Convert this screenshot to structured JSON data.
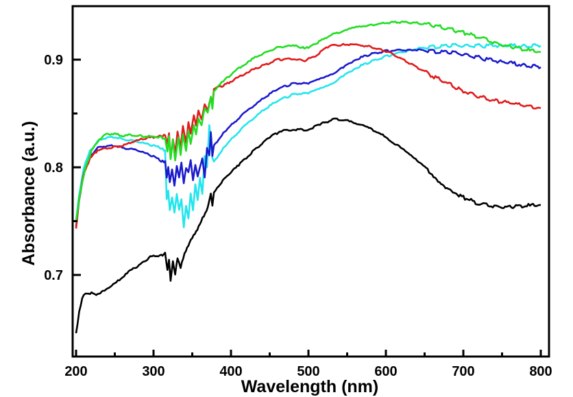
{
  "chart_data": {
    "type": "line",
    "title": "",
    "xlabel": "Wavelength (nm)",
    "ylabel": "Absorbance (a.u.)",
    "xlim": [
      198,
      810
    ],
    "ylim": [
      0.625,
      0.949
    ],
    "x_ticks": [
      200,
      300,
      400,
      500,
      600,
      700,
      800
    ],
    "x_tick_labels": [
      "200",
      "300",
      "400",
      "500",
      "600",
      "700",
      "800"
    ],
    "x_minor_ticks": [
      250,
      350,
      450,
      550,
      650,
      750
    ],
    "y_ticks": [
      0.7,
      0.8,
      0.9
    ],
    "y_tick_labels": [
      "0.7",
      "0.8",
      "0.9"
    ],
    "y_minor_ticks": [
      0.75,
      0.85
    ],
    "grid": false,
    "legend": "none",
    "series": [
      {
        "name": "black",
        "color": "#000000",
        "x": [
          200,
          204,
          208,
          212,
          220,
          226,
          235,
          252,
          270,
          283,
          296,
          310,
          315,
          318,
          320,
          322,
          325,
          328,
          331,
          335,
          340,
          345,
          350,
          355,
          360,
          365,
          370,
          374,
          376,
          378,
          382,
          395,
          410,
          430,
          450,
          465,
          480,
          500,
          515,
          535,
          555,
          580,
          600,
          625,
          650,
          675,
          700,
          720,
          740,
          760,
          780,
          800
        ],
        "y": [
          0.646,
          0.665,
          0.678,
          0.683,
          0.683,
          0.681,
          0.685,
          0.693,
          0.704,
          0.71,
          0.717,
          0.718,
          0.72,
          0.705,
          0.715,
          0.695,
          0.712,
          0.7,
          0.716,
          0.707,
          0.72,
          0.728,
          0.735,
          0.74,
          0.748,
          0.755,
          0.762,
          0.775,
          0.765,
          0.777,
          0.781,
          0.792,
          0.802,
          0.816,
          0.828,
          0.834,
          0.835,
          0.835,
          0.84,
          0.845,
          0.843,
          0.836,
          0.828,
          0.815,
          0.8,
          0.783,
          0.772,
          0.766,
          0.764,
          0.763,
          0.764,
          0.765
        ]
      },
      {
        "name": "red",
        "color": "#e01b1b",
        "x": [
          200,
          204,
          210,
          218,
          228,
          240,
          250,
          260,
          270,
          280,
          290,
          300,
          310,
          315,
          318,
          320,
          322,
          325,
          328,
          331,
          335,
          338,
          342,
          345,
          348,
          352,
          355,
          358,
          362,
          366,
          370,
          374,
          376,
          378,
          390,
          403,
          420,
          440,
          460,
          482,
          495,
          510,
          527,
          545,
          560,
          580,
          600,
          620,
          640,
          660,
          680,
          700,
          720,
          740,
          760,
          780,
          800
        ],
        "y": [
          0.744,
          0.77,
          0.795,
          0.808,
          0.816,
          0.818,
          0.819,
          0.82,
          0.823,
          0.825,
          0.827,
          0.828,
          0.829,
          0.83,
          0.822,
          0.832,
          0.808,
          0.826,
          0.812,
          0.834,
          0.818,
          0.838,
          0.822,
          0.842,
          0.832,
          0.848,
          0.838,
          0.852,
          0.845,
          0.858,
          0.852,
          0.866,
          0.858,
          0.873,
          0.876,
          0.881,
          0.888,
          0.894,
          0.9,
          0.901,
          0.899,
          0.904,
          0.913,
          0.914,
          0.914,
          0.912,
          0.908,
          0.901,
          0.893,
          0.885,
          0.878,
          0.871,
          0.866,
          0.862,
          0.86,
          0.857,
          0.855
        ]
      },
      {
        "name": "green",
        "color": "#22dd22",
        "x": [
          200,
          205,
          212,
          220,
          230,
          240,
          250,
          260,
          270,
          280,
          290,
          300,
          310,
          315,
          318,
          320,
          322,
          325,
          328,
          332,
          335,
          338,
          342,
          345,
          348,
          352,
          355,
          358,
          362,
          366,
          370,
          374,
          376,
          378,
          390,
          403,
          420,
          429,
          445,
          460,
          475,
          482,
          491,
          500,
          510,
          527,
          545,
          560,
          580,
          600,
          620,
          640,
          660,
          680,
          700,
          720,
          740,
          760,
          780,
          800
        ],
        "y": [
          0.75,
          0.775,
          0.8,
          0.815,
          0.826,
          0.831,
          0.831,
          0.829,
          0.83,
          0.829,
          0.829,
          0.828,
          0.828,
          0.826,
          0.815,
          0.83,
          0.808,
          0.825,
          0.806,
          0.828,
          0.812,
          0.83,
          0.815,
          0.835,
          0.822,
          0.84,
          0.83,
          0.845,
          0.84,
          0.855,
          0.85,
          0.865,
          0.855,
          0.871,
          0.88,
          0.888,
          0.897,
          0.901,
          0.907,
          0.911,
          0.913,
          0.913,
          0.911,
          0.911,
          0.915,
          0.922,
          0.927,
          0.93,
          0.932,
          0.934,
          0.935,
          0.934,
          0.932,
          0.929,
          0.925,
          0.921,
          0.916,
          0.912,
          0.909,
          0.907
        ]
      },
      {
        "name": "blue",
        "color": "#1a1acc",
        "x": [
          200,
          204,
          210,
          218,
          228,
          240,
          250,
          260,
          270,
          280,
          290,
          300,
          310,
          315,
          317,
          319,
          321,
          324,
          327,
          330,
          333,
          336,
          339,
          342,
          345,
          348,
          351,
          354,
          357,
          360,
          363,
          366,
          369,
          372,
          374,
          376,
          378,
          390,
          403,
          420,
          440,
          460,
          482,
          500,
          527,
          545,
          560,
          580,
          600,
          620,
          640,
          660,
          680,
          700,
          720,
          740,
          760,
          780,
          800
        ],
        "y": [
          0.744,
          0.77,
          0.795,
          0.81,
          0.818,
          0.82,
          0.82,
          0.818,
          0.817,
          0.816,
          0.813,
          0.81,
          0.806,
          0.805,
          0.79,
          0.8,
          0.786,
          0.798,
          0.783,
          0.801,
          0.79,
          0.804,
          0.786,
          0.8,
          0.795,
          0.806,
          0.788,
          0.803,
          0.792,
          0.8,
          0.808,
          0.79,
          0.818,
          0.812,
          0.832,
          0.81,
          0.82,
          0.832,
          0.841,
          0.852,
          0.863,
          0.873,
          0.878,
          0.878,
          0.885,
          0.893,
          0.9,
          0.905,
          0.908,
          0.909,
          0.909,
          0.908,
          0.907,
          0.905,
          0.902,
          0.899,
          0.897,
          0.895,
          0.893
        ]
      },
      {
        "name": "cyan",
        "color": "#22e5ee",
        "x": [
          200,
          204,
          210,
          218,
          228,
          240,
          250,
          260,
          270,
          280,
          290,
          300,
          310,
          315,
          317,
          319,
          321,
          324,
          327,
          330,
          333,
          336,
          339,
          342,
          345,
          348,
          351,
          354,
          357,
          360,
          363,
          366,
          369,
          372,
          374,
          376,
          378,
          390,
          403,
          420,
          440,
          460,
          482,
          500,
          527,
          545,
          560,
          580,
          600,
          620,
          640,
          660,
          680,
          700,
          720,
          740,
          760,
          780,
          800
        ],
        "y": [
          0.75,
          0.775,
          0.8,
          0.815,
          0.824,
          0.828,
          0.828,
          0.826,
          0.825,
          0.824,
          0.822,
          0.82,
          0.818,
          0.815,
          0.77,
          0.778,
          0.76,
          0.772,
          0.758,
          0.775,
          0.76,
          0.77,
          0.745,
          0.765,
          0.752,
          0.775,
          0.76,
          0.785,
          0.77,
          0.79,
          0.775,
          0.81,
          0.8,
          0.84,
          0.825,
          0.808,
          0.805,
          0.818,
          0.828,
          0.84,
          0.852,
          0.862,
          0.868,
          0.869,
          0.876,
          0.885,
          0.892,
          0.898,
          0.903,
          0.907,
          0.91,
          0.912,
          0.913,
          0.913,
          0.913,
          0.913,
          0.913,
          0.913,
          0.913
        ]
      }
    ]
  }
}
